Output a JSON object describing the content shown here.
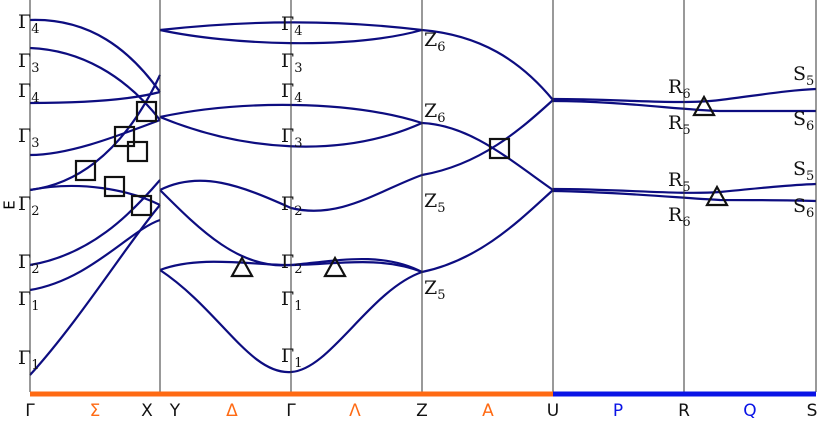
{
  "axis_label": "E",
  "path_labels": [
    "Γ",
    "Σ",
    "X",
    "Y",
    "Δ",
    "Γ",
    "Λ",
    "Z",
    "A",
    "U",
    "P",
    "R",
    "Q",
    "S"
  ],
  "band_labels": [
    {
      "symbol": "Γ",
      "sub": "4"
    },
    {
      "symbol": "Γ",
      "sub": "3"
    },
    {
      "symbol": "Γ",
      "sub": "4"
    },
    {
      "symbol": "Γ",
      "sub": "3"
    },
    {
      "symbol": "Γ",
      "sub": "2"
    },
    {
      "symbol": "Γ",
      "sub": "2"
    },
    {
      "symbol": "Γ",
      "sub": "1"
    },
    {
      "symbol": "Γ",
      "sub": "1"
    },
    {
      "symbol": "Γ",
      "sub": "4"
    },
    {
      "symbol": "Γ",
      "sub": "3"
    },
    {
      "symbol": "Γ",
      "sub": "4"
    },
    {
      "symbol": "Γ",
      "sub": "3"
    },
    {
      "symbol": "Γ",
      "sub": "2"
    },
    {
      "symbol": "Γ",
      "sub": "2"
    },
    {
      "symbol": "Γ",
      "sub": "1"
    },
    {
      "symbol": "Γ",
      "sub": "1"
    },
    {
      "symbol": "Z",
      "sub": "6"
    },
    {
      "symbol": "Z",
      "sub": "6"
    },
    {
      "symbol": "Z",
      "sub": "5"
    },
    {
      "symbol": "Z",
      "sub": "5"
    },
    {
      "symbol": "R",
      "sub": "6"
    },
    {
      "symbol": "R",
      "sub": "5"
    },
    {
      "symbol": "R",
      "sub": "5"
    },
    {
      "symbol": "R",
      "sub": "6"
    },
    {
      "symbol": "S",
      "sub": "5"
    },
    {
      "symbol": "S",
      "sub": "6"
    },
    {
      "symbol": "S",
      "sub": "5"
    },
    {
      "symbol": "S",
      "sub": "6"
    }
  ]
}
